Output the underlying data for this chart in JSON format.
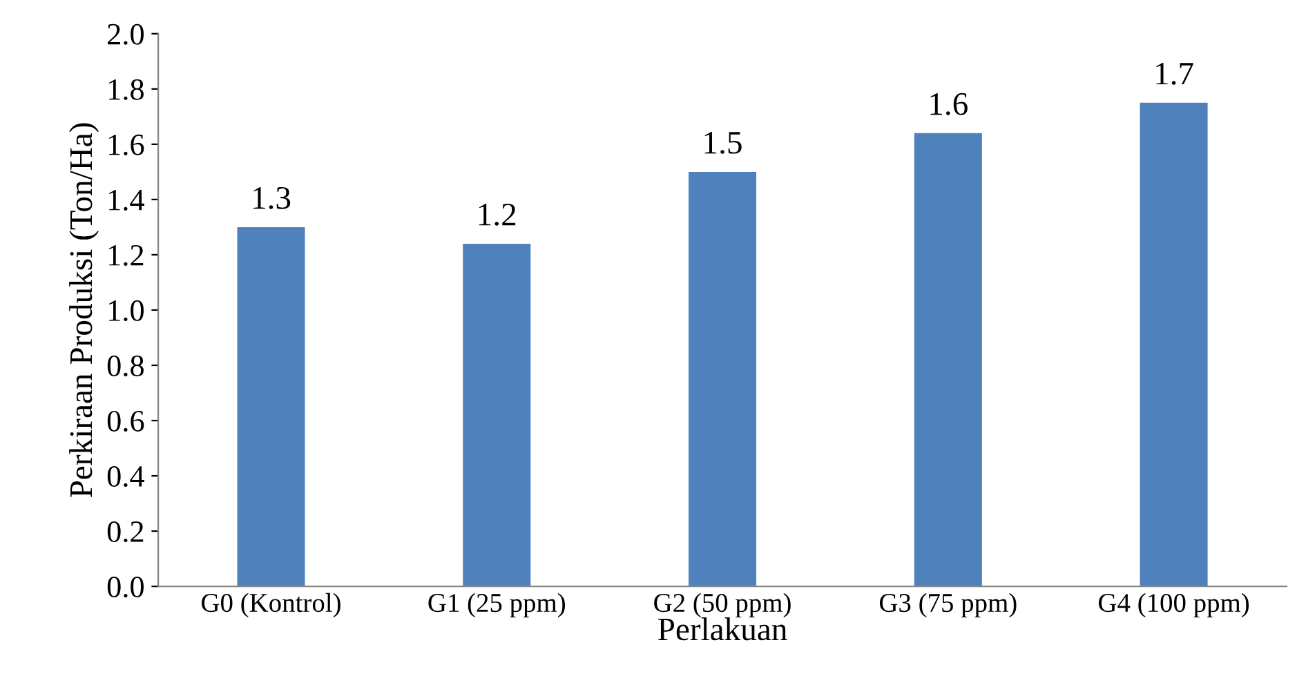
{
  "chart_data": {
    "type": "bar",
    "xlabel": "Perlakuan",
    "ylabel": "Perkiraan Produksi (Ton/Ha)",
    "categories": [
      "G0 (Kontrol)",
      "G1 (25 ppm)",
      "G2 (50 ppm)",
      "G3 (75 ppm)",
      "G4 (100 ppm)"
    ],
    "values": [
      1.3,
      1.24,
      1.5,
      1.64,
      1.75
    ],
    "value_labels": [
      "1.3",
      "1.2",
      "1.5",
      "1.6",
      "1.7"
    ],
    "color": "#4f81bd",
    "ylim": [
      0,
      2.0
    ],
    "yticks": [
      {
        "value": 0,
        "label": "0.0"
      },
      {
        "value": 0.2,
        "label": "0.2"
      },
      {
        "value": 0.4,
        "label": "0.4"
      },
      {
        "value": 0.6,
        "label": "0.6"
      },
      {
        "value": 0.8,
        "label": "0.8"
      },
      {
        "value": 1.0,
        "label": "1.0"
      },
      {
        "value": 1.2,
        "label": "1.2"
      },
      {
        "value": 1.4,
        "label": "1.4"
      },
      {
        "value": 1.6,
        "label": "1.6"
      },
      {
        "value": 1.8,
        "label": "1.8"
      },
      {
        "value": 2.0,
        "label": "2.0"
      }
    ],
    "grid": false,
    "legend": false
  }
}
